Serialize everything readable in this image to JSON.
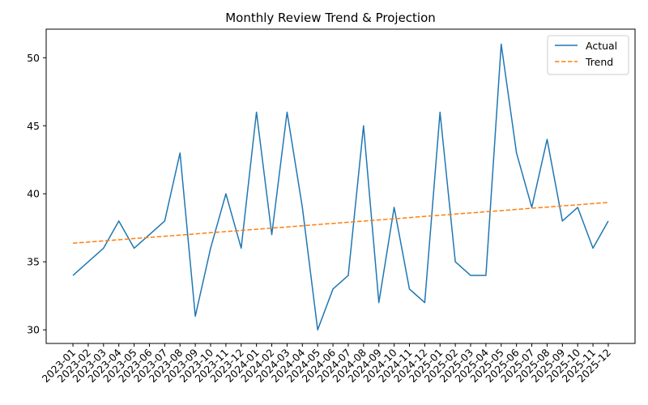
{
  "chart_data": {
    "type": "line",
    "title": "Monthly Review Trend & Projection",
    "xlabel": "",
    "ylabel": "",
    "categories": [
      "2023-01",
      "2023-02",
      "2023-03",
      "2023-04",
      "2023-05",
      "2023-06",
      "2023-07",
      "2023-08",
      "2023-09",
      "2023-10",
      "2023-11",
      "2023-12",
      "2024-01",
      "2024-02",
      "2024-03",
      "2024-04",
      "2024-05",
      "2024-06",
      "2024-07",
      "2024-08",
      "2024-09",
      "2024-10",
      "2024-11",
      "2024-12",
      "2025-01",
      "2025-02",
      "2025-03",
      "2025-04",
      "2025-05",
      "2025-06",
      "2025-07",
      "2025-08",
      "2025-09",
      "2025-10",
      "2025-11",
      "2025-12"
    ],
    "series": [
      {
        "name": "Actual",
        "style": "solid",
        "color": "#1f77b4",
        "values": [
          34,
          35,
          36,
          38,
          36,
          37,
          38,
          43,
          31,
          36,
          40,
          36,
          46,
          37,
          46,
          39,
          30,
          33,
          34,
          45,
          32,
          39,
          33,
          32,
          46,
          35,
          34,
          34,
          51,
          43,
          39,
          44,
          38,
          39,
          36,
          38
        ]
      },
      {
        "name": "Trend",
        "style": "dashed",
        "color": "#ff7f0e",
        "values": [
          36.37,
          36.45,
          36.54,
          36.62,
          36.71,
          36.79,
          36.88,
          36.96,
          37.05,
          37.14,
          37.22,
          37.31,
          37.39,
          37.48,
          37.56,
          37.65,
          37.74,
          37.82,
          37.91,
          37.99,
          38.08,
          38.16,
          38.25,
          38.34,
          38.42,
          38.51,
          38.59,
          38.68,
          38.76,
          38.85,
          38.94,
          39.02,
          39.11,
          39.19,
          39.28,
          39.36
        ]
      }
    ],
    "ylim": [
      29.0,
      52.1
    ],
    "yticks": [
      30,
      35,
      40,
      45,
      50
    ],
    "grid": false,
    "legend_position": "top-right"
  }
}
